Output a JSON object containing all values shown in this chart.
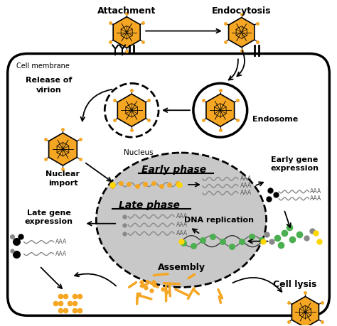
{
  "background_color": "#ffffff",
  "virus_color": "#f5a623",
  "green_color": "#4caf50",
  "nucleus_color": "#c8c8c8",
  "labels": {
    "attachment": "Attachment",
    "endocytosis": "Endocytosis",
    "cell_membrane": "Cell membrane",
    "nucleus": "Nucleus",
    "endosome": "Endosome",
    "release_virion": "Release of\nvirion",
    "nuclear_import": "Nuclear\nimport",
    "early_phase": "Early phase",
    "late_phase": "Late phase",
    "dna_replication": "DNA replication",
    "assembly": "Assembly",
    "early_gene": "Early gene\nexpression",
    "late_gene": "Late gene\nexpression",
    "cell_lysis": "Cell lysis"
  }
}
